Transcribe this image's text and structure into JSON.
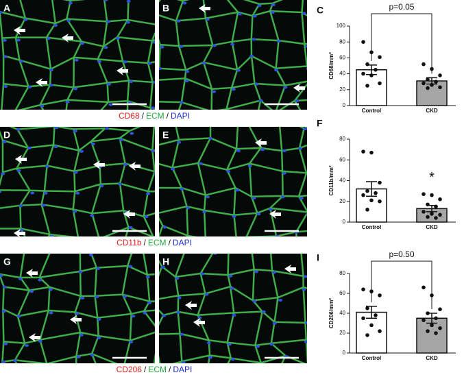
{
  "image_panels": [
    "A",
    "B",
    "D",
    "E",
    "G",
    "H"
  ],
  "stain_captions": [
    {
      "marker": "CD68",
      "ecm": "ECM",
      "dapi": "DAPI",
      "separator": "/"
    },
    {
      "marker": "CD11b",
      "ecm": "ECM",
      "dapi": "DAPI",
      "separator": "/"
    },
    {
      "marker": "CD206",
      "ecm": "ECM",
      "dapi": "DAPI",
      "separator": "/"
    }
  ],
  "chart_data": [
    {
      "type": "bar",
      "panel_label": "C",
      "y_label": "CD68/mm²",
      "categories": [
        "Control",
        "CKD"
      ],
      "values": [
        45,
        31
      ],
      "errors": [
        6,
        4
      ],
      "colors": [
        "#ffffff",
        "#a6a6a6"
      ],
      "points": [
        [
          80,
          67,
          61,
          52,
          45,
          40,
          38,
          28,
          25
        ],
        [
          52,
          46,
          38,
          33,
          30,
          28,
          26,
          23,
          22
        ]
      ],
      "ylim": [
        0,
        100
      ],
      "yticks": [
        0,
        20,
        40,
        60,
        80,
        100
      ],
      "annotation": {
        "text": "p=0.05",
        "style": "bracket"
      }
    },
    {
      "type": "bar",
      "panel_label": "F",
      "y_label": "CD11b/mm²",
      "categories": [
        "Control",
        "CKD"
      ],
      "values": [
        32,
        13
      ],
      "errors": [
        7,
        3
      ],
      "colors": [
        "#ffffff",
        "#a6a6a6"
      ],
      "points": [
        [
          68,
          67,
          38,
          30,
          28,
          26,
          21,
          20,
          12
        ],
        [
          27,
          26,
          22,
          17,
          15,
          10,
          8,
          7,
          5,
          4
        ]
      ],
      "ylim": [
        0,
        80
      ],
      "yticks": [
        0,
        20,
        40,
        60,
        80
      ],
      "annotation": {
        "text": "*",
        "style": "above-bar",
        "category": 1
      }
    },
    {
      "type": "bar",
      "panel_label": "I",
      "y_label": "CD206/mm²",
      "categories": [
        "Control",
        "CKD"
      ],
      "values": [
        41,
        35
      ],
      "errors": [
        6,
        5
      ],
      "colors": [
        "#ffffff",
        "#a6a6a6"
      ],
      "points": [
        [
          64,
          62,
          58,
          45,
          38,
          35,
          28,
          22,
          18
        ],
        [
          66,
          58,
          44,
          40,
          35,
          33,
          28,
          25,
          22,
          20
        ]
      ],
      "ylim": [
        0,
        80
      ],
      "yticks": [
        0,
        20,
        40,
        60,
        80
      ],
      "annotation": {
        "text": "p=0.50",
        "style": "bracket"
      }
    }
  ]
}
